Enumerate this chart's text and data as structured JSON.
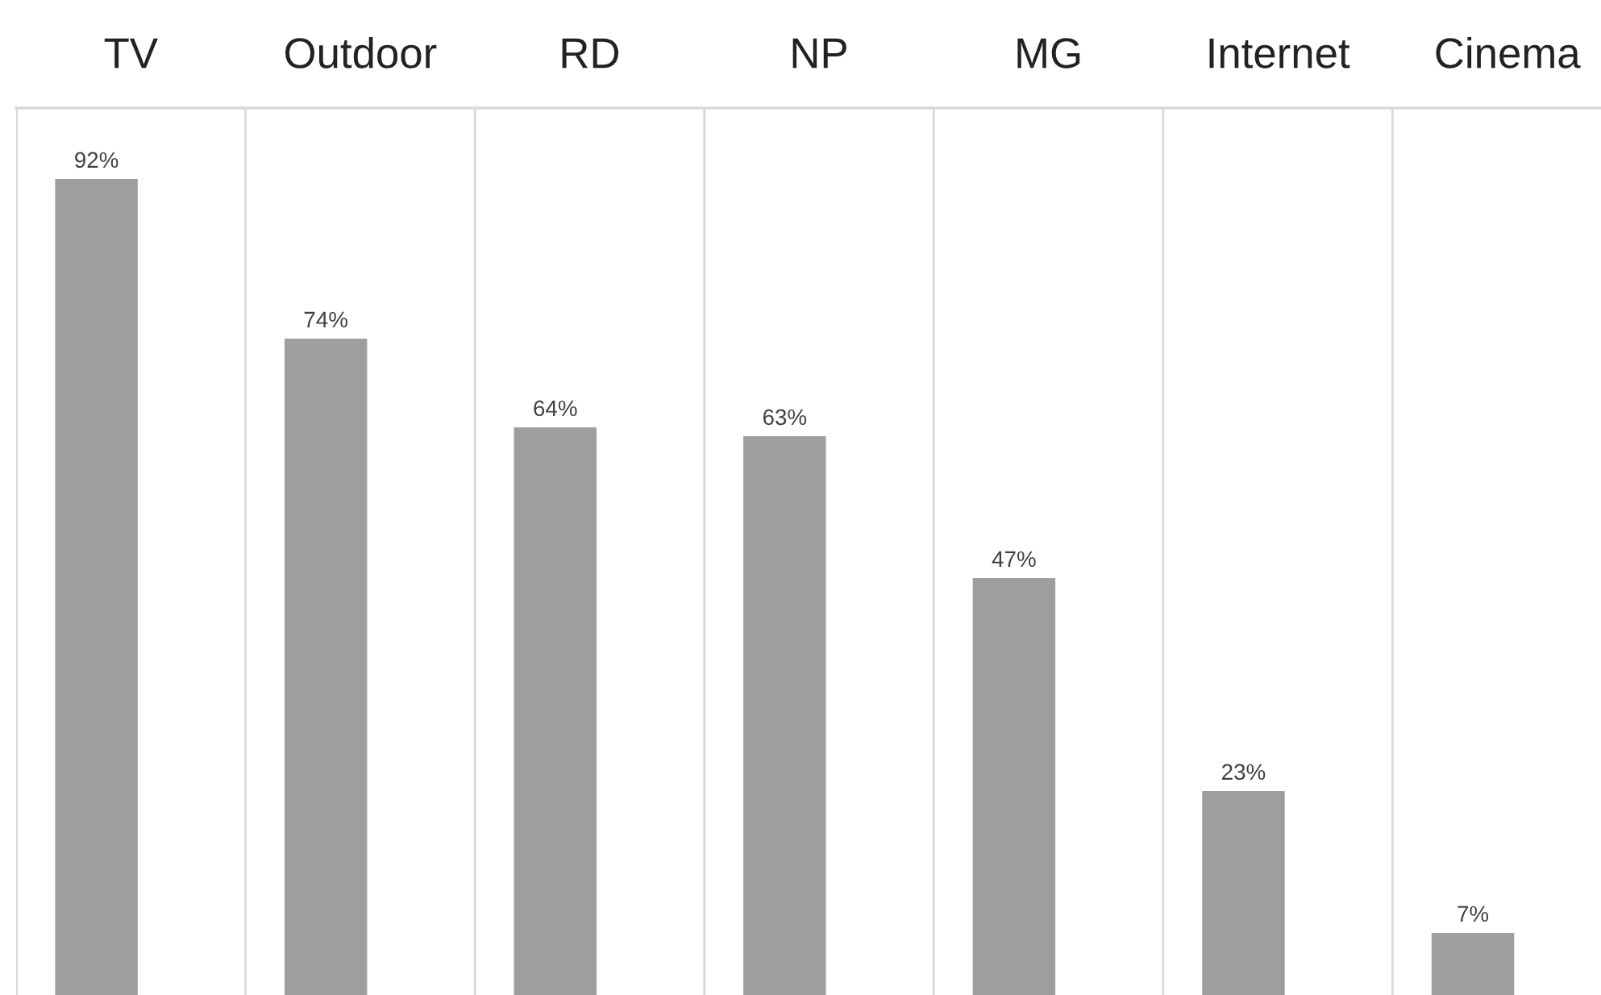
{
  "chart_data": {
    "type": "bar",
    "categories": [
      "TV",
      "Outdoor",
      "RD",
      "NP",
      "MG",
      "Internet",
      "Cinema"
    ],
    "values": [
      92,
      74,
      64,
      63,
      47,
      23,
      7
    ],
    "value_labels": [
      "92%",
      "74%",
      "64%",
      "63%",
      "47%",
      "23%",
      "7%"
    ],
    "color": "#9e9e9e",
    "grid": "x",
    "legend": false
  }
}
